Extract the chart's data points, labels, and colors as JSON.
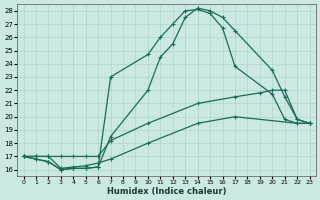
{
  "xlabel": "Humidex (Indice chaleur)",
  "background_color": "#cbe8e3",
  "line_color": "#1a6b5a",
  "xlim": [
    -0.5,
    23.5
  ],
  "ylim": [
    15.5,
    28.5
  ],
  "yticks": [
    16,
    17,
    18,
    19,
    20,
    21,
    22,
    23,
    24,
    25,
    26,
    27,
    28
  ],
  "xticks": [
    0,
    1,
    2,
    3,
    4,
    5,
    6,
    7,
    8,
    9,
    10,
    11,
    12,
    13,
    14,
    15,
    16,
    17,
    18,
    19,
    20,
    21,
    22,
    23
  ],
  "line1_x": [
    0,
    1,
    2,
    3,
    4,
    5,
    6,
    7,
    10,
    11,
    12,
    13,
    14,
    15,
    16,
    17,
    20,
    21,
    22,
    23
  ],
  "line1_y": [
    17,
    16.8,
    16.6,
    16.0,
    16.1,
    16.1,
    16.2,
    23.0,
    24.7,
    26.0,
    27.0,
    28.0,
    28.1,
    27.8,
    26.7,
    23.8,
    21.7,
    19.8,
    19.5,
    19.5
  ],
  "line2_x": [
    0,
    1,
    2,
    3,
    4,
    5,
    6,
    7,
    10,
    11,
    12,
    13,
    14,
    15,
    16,
    17,
    20,
    21,
    22,
    23
  ],
  "line2_y": [
    17,
    16.8,
    16.6,
    16.0,
    16.1,
    16.1,
    16.2,
    18.5,
    22.0,
    24.5,
    25.5,
    27.5,
    28.2,
    28.0,
    27.5,
    26.5,
    23.5,
    21.5,
    19.8,
    19.5
  ],
  "line3_x": [
    0,
    1,
    2,
    3,
    4,
    5,
    6,
    7,
    10,
    14,
    17,
    19,
    20,
    21,
    22,
    23
  ],
  "line3_y": [
    17,
    17,
    17,
    17,
    17,
    17,
    17,
    18.2,
    19.5,
    21.0,
    21.5,
    21.8,
    22.0,
    22.0,
    19.8,
    19.5
  ],
  "line4_x": [
    0,
    1,
    2,
    3,
    4,
    5,
    6,
    7,
    10,
    14,
    17,
    22,
    23
  ],
  "line4_y": [
    17,
    17,
    17,
    16.1,
    16.2,
    16.3,
    16.5,
    16.8,
    18.0,
    19.5,
    20.0,
    19.5,
    19.5
  ],
  "gridcolor": "#aad8cc",
  "marker": "+"
}
